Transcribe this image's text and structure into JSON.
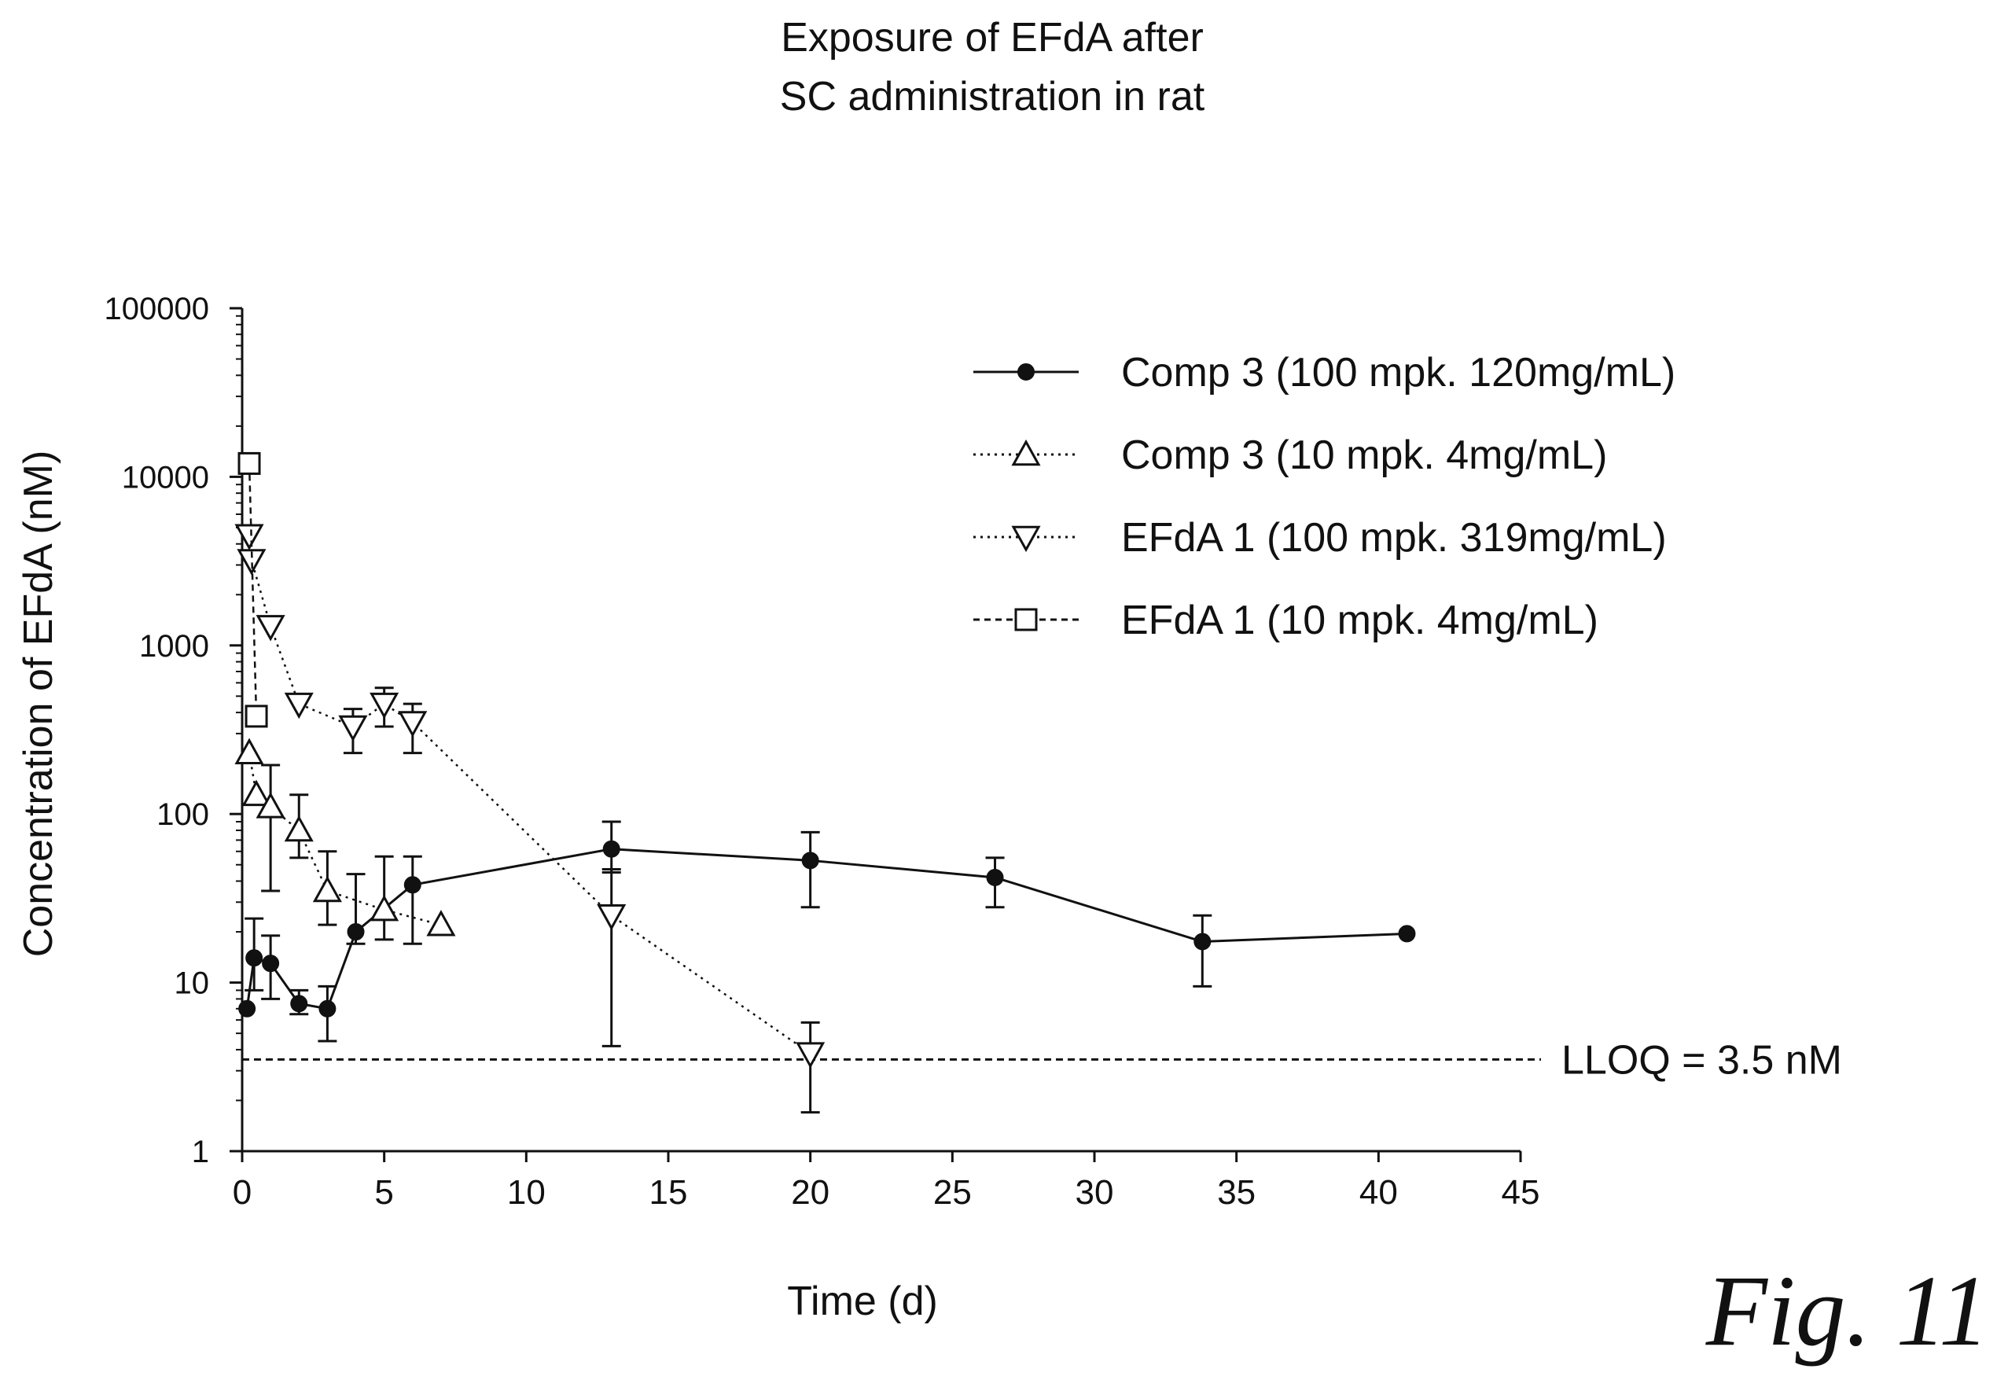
{
  "figure_label": "Fig. 11",
  "chart_data": {
    "type": "line",
    "title": "Exposure of EFdA after",
    "subtitle": "SC administration in rat",
    "xlabel": "Time (d)",
    "ylabel": "Concentration of EFdA (nM)",
    "xlim": [
      0,
      45
    ],
    "ylim": [
      1,
      100000
    ],
    "yscale": "log",
    "grid": false,
    "legend_position": "top-right",
    "x_ticks": [
      "0",
      "5",
      "10",
      "15",
      "20",
      "25",
      "30",
      "35",
      "40",
      "45"
    ],
    "y_ticks": [
      "1",
      "10",
      "100",
      "1000",
      "10000",
      "100000"
    ],
    "reference_line": {
      "y": 3.5,
      "label": "LLOQ = 3.5 nM"
    },
    "series": [
      {
        "name": "Comp 3 (100 mpk. 120mg/mL)",
        "marker": "filled-circle",
        "line": "solid",
        "points": [
          {
            "x": 0.17,
            "y": 7
          },
          {
            "x": 0.42,
            "y": 14,
            "lo": 9,
            "hi": 24
          },
          {
            "x": 1,
            "y": 13,
            "lo": 8,
            "hi": 19
          },
          {
            "x": 2,
            "y": 7.5,
            "lo": 6.5,
            "hi": 9
          },
          {
            "x": 3,
            "y": 7,
            "lo": 4.5,
            "hi": 9.5
          },
          {
            "x": 4,
            "y": 20,
            "lo": 17,
            "hi": 44
          },
          {
            "x": 6,
            "y": 38,
            "lo": 17,
            "hi": 56
          },
          {
            "x": 13,
            "y": 62,
            "lo": 45,
            "hi": 90
          },
          {
            "x": 20,
            "y": 53,
            "lo": 28,
            "hi": 78
          },
          {
            "x": 26.5,
            "y": 42,
            "lo": 28,
            "hi": 55
          },
          {
            "x": 33.8,
            "y": 17.5,
            "lo": 9.5,
            "hi": 25
          },
          {
            "x": 41,
            "y": 19.5
          }
        ]
      },
      {
        "name": "Comp 3 (10 mpk. 4mg/mL)",
        "marker": "open-triangle-up",
        "line": "dotted",
        "points": [
          {
            "x": 0.25,
            "y": 230
          },
          {
            "x": 0.5,
            "y": 130
          },
          {
            "x": 1,
            "y": 110,
            "lo": 35,
            "hi": 195
          },
          {
            "x": 2,
            "y": 80,
            "lo": 55,
            "hi": 130
          },
          {
            "x": 3,
            "y": 35,
            "lo": 22,
            "hi": 60
          },
          {
            "x": 5,
            "y": 27,
            "lo": 18,
            "hi": 56
          },
          {
            "x": 7,
            "y": 22
          }
        ]
      },
      {
        "name": "EFdA 1 (100 mpk. 319mg/mL)",
        "marker": "open-triangle-down",
        "line": "dotted",
        "points": [
          {
            "x": 0.25,
            "y": 4500
          },
          {
            "x": 0.33,
            "y": 3200
          },
          {
            "x": 1,
            "y": 1300
          },
          {
            "x": 2,
            "y": 450
          },
          {
            "x": 3.9,
            "y": 330,
            "lo": 230,
            "hi": 420
          },
          {
            "x": 5,
            "y": 450,
            "lo": 330,
            "hi": 560
          },
          {
            "x": 6,
            "y": 350,
            "lo": 230,
            "hi": 450
          },
          {
            "x": 13,
            "y": 25,
            "lo": 4.2,
            "hi": 47
          },
          {
            "x": 20,
            "y": 3.8,
            "lo": 1.7,
            "hi": 5.8
          }
        ]
      },
      {
        "name": "EFdA 1 (10 mpk. 4mg/mL)",
        "marker": "open-square",
        "line": "dashed",
        "points": [
          {
            "x": 0.25,
            "y": 12000
          },
          {
            "x": 0.5,
            "y": 380
          }
        ]
      }
    ]
  }
}
